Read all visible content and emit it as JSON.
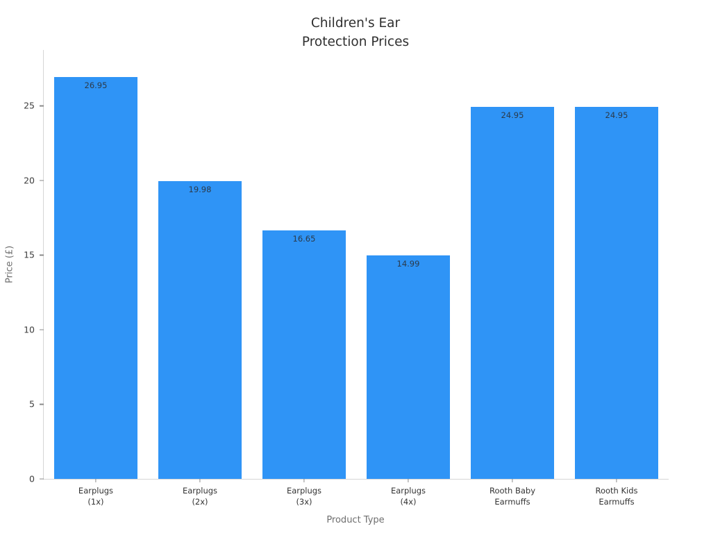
{
  "chart_data": {
    "type": "bar",
    "title": "Children's Ear\nProtection Prices",
    "xlabel": "Product Type",
    "ylabel": "Price (£)",
    "categories": [
      "Earplugs\n(1x)",
      "Earplugs\n(2x)",
      "Earplugs\n(3x)",
      "Earplugs\n(4x)",
      "Rooth Baby\nEarmuffs",
      "Rooth Kids\nEarmuffs"
    ],
    "values": [
      26.95,
      19.98,
      16.65,
      14.99,
      24.95,
      24.95
    ],
    "value_labels": [
      "26.95",
      "19.98",
      "16.65",
      "14.99",
      "24.95",
      "24.95"
    ],
    "yticks": [
      0,
      5,
      10,
      15,
      20,
      25
    ],
    "ylim": [
      0,
      28.75
    ],
    "bar_color": "#2f94f6",
    "value_label_color": "#2b3a4a",
    "grid": false,
    "legend": null
  }
}
